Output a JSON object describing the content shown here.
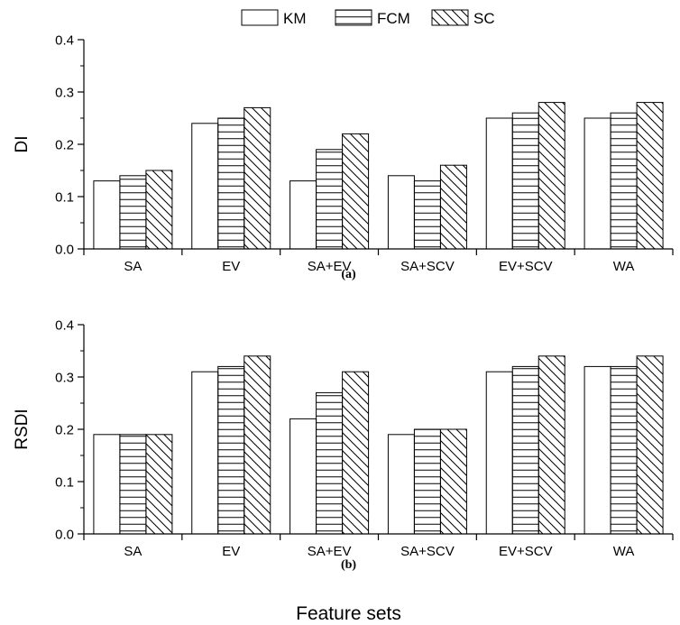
{
  "chart_data": [
    {
      "type": "bar",
      "categories": [
        "SA",
        "EV",
        "SA+EV",
        "SA+SCV",
        "EV+SCV",
        "WA"
      ],
      "series": [
        {
          "name": "KM",
          "values": [
            0.13,
            0.24,
            0.13,
            0.14,
            0.25,
            0.25
          ]
        },
        {
          "name": "FCM",
          "values": [
            0.14,
            0.25,
            0.19,
            0.13,
            0.26,
            0.26
          ]
        },
        {
          "name": "SC",
          "values": [
            0.15,
            0.27,
            0.22,
            0.16,
            0.28,
            0.28
          ]
        }
      ],
      "ylabel": "DI",
      "ylim": [
        0,
        0.4
      ],
      "yticks": [
        "0.0",
        "0.1",
        "0.2",
        "0.3",
        "0.4"
      ],
      "subplot_label": "(a)",
      "legend_position": "top-center",
      "grid": false
    },
    {
      "type": "bar",
      "categories": [
        "SA",
        "EV",
        "SA+EV",
        "SA+SCV",
        "EV+SCV",
        "WA"
      ],
      "series": [
        {
          "name": "KM",
          "values": [
            0.19,
            0.31,
            0.22,
            0.19,
            0.31,
            0.32
          ]
        },
        {
          "name": "FCM",
          "values": [
            0.19,
            0.32,
            0.27,
            0.2,
            0.32,
            0.32
          ]
        },
        {
          "name": "SC",
          "values": [
            0.19,
            0.34,
            0.31,
            0.2,
            0.34,
            0.34
          ]
        }
      ],
      "ylabel": "RSDI",
      "xlabel": "Feature sets",
      "ylim": [
        0,
        0.4
      ],
      "yticks": [
        "0.0",
        "0.1",
        "0.2",
        "0.3",
        "0.4"
      ],
      "subplot_label": "(b)",
      "grid": false
    }
  ],
  "legend": {
    "items": [
      {
        "label": "KM",
        "pattern": "plain"
      },
      {
        "label": "FCM",
        "pattern": "horizontal-lines"
      },
      {
        "label": "SC",
        "pattern": "diagonal-lines"
      }
    ]
  }
}
